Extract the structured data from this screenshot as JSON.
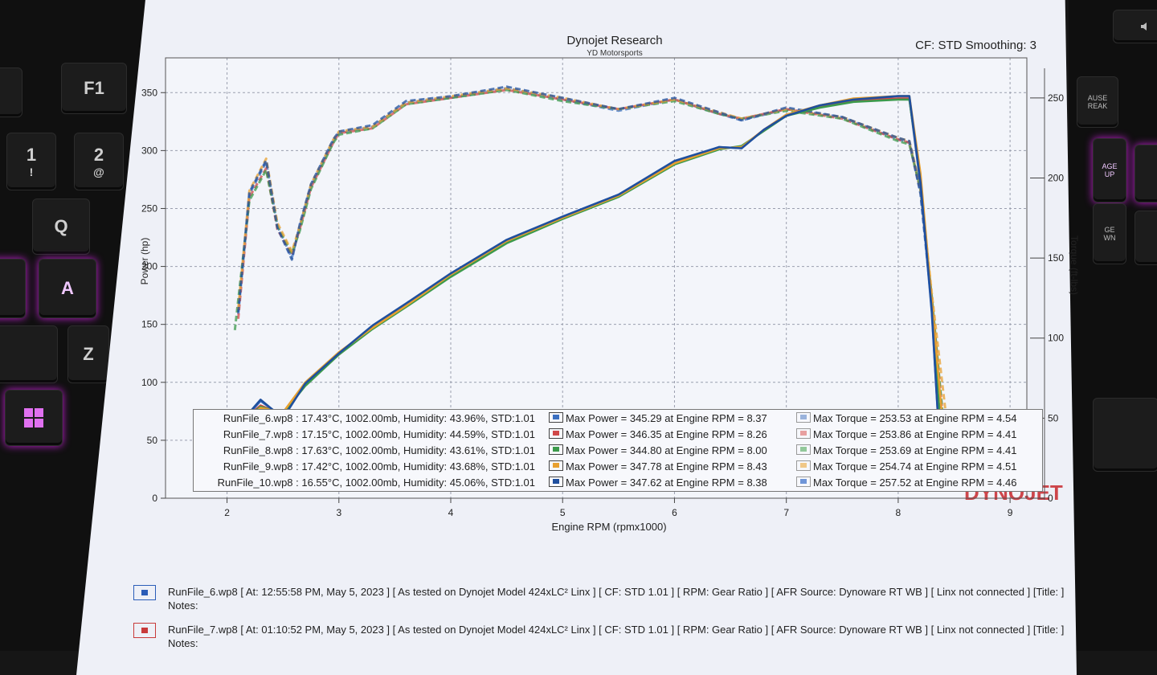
{
  "chart_data": {
    "type": "line",
    "title": "Dynojet Research",
    "subtitle": "YD Motorsports",
    "corner_label": "CF: STD Smoothing: 3",
    "xlabel": "Engine RPM (rpmx1000)",
    "ylabel_left": "Power (hp)",
    "ylabel_right": "Torque (ft-lbs)",
    "xlim": [
      1.45,
      9.15
    ],
    "ylim_left": [
      0,
      380
    ],
    "ylim_right": [
      0,
      275
    ],
    "xticks": [
      "2",
      "3",
      "4",
      "5",
      "6",
      "7",
      "8",
      "9"
    ],
    "yticks_left": [
      "0",
      "50",
      "100",
      "150",
      "200",
      "250",
      "300",
      "350"
    ],
    "yticks_right": [
      "0",
      "50",
      "100",
      "150",
      "200",
      "250"
    ],
    "grid": true,
    "line_style": {
      "power": "solid",
      "torque": "dashed"
    },
    "series": [
      {
        "name": "RunFile_6.wp8",
        "color": "#3a6fc0",
        "power_x": [
          2.1,
          2.2,
          2.3,
          2.5,
          2.7,
          3.0,
          3.3,
          3.6,
          4.0,
          4.5,
          5.0,
          5.5,
          6.0,
          6.4,
          6.6,
          6.8,
          7.0,
          7.3,
          7.6,
          8.0,
          8.1,
          8.2,
          8.3,
          8.38
        ],
        "power_y": [
          56,
          73,
          84,
          70,
          99,
          125,
          148,
          167,
          193,
          222,
          243,
          262,
          290,
          303,
          302,
          318,
          330,
          339,
          344,
          345,
          345,
          270,
          160,
          30
        ],
        "torque_x": [
          2.1,
          2.2,
          2.35,
          2.45,
          2.58,
          2.65,
          2.75,
          2.95,
          3.0,
          3.3,
          3.6,
          4.0,
          4.5,
          5.0,
          5.5,
          6.0,
          6.4,
          6.6,
          7.0,
          7.5,
          8.0,
          8.1,
          8.2,
          8.3,
          8.38
        ],
        "torque_y": [
          115,
          190,
          210,
          170,
          150,
          170,
          195,
          223,
          228,
          232,
          247,
          250,
          256,
          249,
          242,
          249,
          240,
          236,
          243,
          238,
          224,
          222,
          190,
          120,
          50
        ]
      },
      {
        "name": "RunFile_7.wp8",
        "color": "#d04848",
        "power_x": [
          2.1,
          2.2,
          2.3,
          2.5,
          2.7,
          3.0,
          3.3,
          3.6,
          4.0,
          4.5,
          5.0,
          5.5,
          6.0,
          6.4,
          6.6,
          6.8,
          7.0,
          7.3,
          7.6,
          8.0,
          8.1,
          8.2,
          8.3,
          8.4
        ],
        "power_y": [
          55,
          72,
          80,
          72,
          98,
          124,
          147,
          166,
          192,
          221,
          242,
          261,
          289,
          302,
          303,
          318,
          331,
          338,
          343,
          345,
          345,
          275,
          165,
          30
        ],
        "torque_x": [
          2.1,
          2.2,
          2.35,
          2.45,
          2.58,
          2.65,
          2.75,
          2.95,
          3.0,
          3.3,
          3.6,
          4.0,
          4.5,
          5.0,
          5.5,
          6.0,
          6.4,
          6.6,
          7.0,
          7.5,
          8.0,
          8.1,
          8.2,
          8.3,
          8.4
        ],
        "torque_y": [
          112,
          188,
          206,
          168,
          152,
          168,
          194,
          222,
          228,
          231,
          246,
          250,
          255,
          249,
          243,
          249,
          240,
          237,
          243,
          237,
          224,
          222,
          192,
          125,
          50
        ]
      },
      {
        "name": "RunFile_8.wp8",
        "color": "#3c9a4c",
        "power_x": [
          2.1,
          2.2,
          2.3,
          2.5,
          2.7,
          3.0,
          3.3,
          3.6,
          4.0,
          4.5,
          5.0,
          5.5,
          6.0,
          6.4,
          6.6,
          6.8,
          7.0,
          7.3,
          7.6,
          8.0,
          8.1,
          8.2,
          8.3,
          8.4
        ],
        "power_y": [
          54,
          71,
          79,
          73,
          97,
          124,
          146,
          165,
          191,
          220,
          241,
          260,
          288,
          301,
          304,
          317,
          330,
          337,
          342,
          344,
          344,
          276,
          168,
          30
        ],
        "torque_x": [
          2.07,
          2.2,
          2.35,
          2.45,
          2.58,
          2.65,
          2.75,
          2.95,
          3.0,
          3.3,
          3.6,
          4.0,
          4.5,
          5.0,
          5.5,
          6.0,
          6.4,
          6.6,
          7.0,
          7.5,
          8.0,
          8.1,
          8.2,
          8.3,
          8.4
        ],
        "torque_y": [
          105,
          186,
          205,
          170,
          153,
          167,
          193,
          222,
          227,
          231,
          246,
          250,
          255,
          248,
          243,
          248,
          240,
          237,
          242,
          237,
          223,
          221,
          193,
          126,
          50
        ]
      },
      {
        "name": "RunFile_9.wp8",
        "color": "#e8a030",
        "power_x": [
          2.1,
          2.2,
          2.3,
          2.5,
          2.7,
          3.0,
          3.3,
          3.6,
          4.0,
          4.5,
          5.0,
          5.5,
          6.0,
          6.4,
          6.6,
          6.8,
          7.0,
          7.3,
          7.6,
          8.0,
          8.1,
          8.2,
          8.3,
          8.43
        ],
        "power_y": [
          52,
          70,
          78,
          74,
          100,
          126,
          147,
          166,
          193,
          222,
          242,
          261,
          289,
          302,
          303,
          318,
          331,
          339,
          345,
          347,
          347,
          280,
          170,
          30
        ],
        "torque_x": [
          2.1,
          2.2,
          2.35,
          2.45,
          2.58,
          2.65,
          2.75,
          2.95,
          3.0,
          3.3,
          3.6,
          4.0,
          4.5,
          5.0,
          5.5,
          6.0,
          6.4,
          6.6,
          7.0,
          7.5,
          8.0,
          8.1,
          8.2,
          8.3,
          8.43
        ],
        "torque_y": [
          118,
          192,
          212,
          172,
          154,
          170,
          196,
          224,
          229,
          232,
          247,
          251,
          256,
          250,
          243,
          249,
          241,
          237,
          243,
          238,
          225,
          223,
          194,
          128,
          50
        ]
      },
      {
        "name": "RunFile_10.wp8",
        "color": "#1f4f9e",
        "power_x": [
          2.1,
          2.2,
          2.3,
          2.5,
          2.7,
          3.0,
          3.3,
          3.6,
          4.0,
          4.5,
          5.0,
          5.5,
          6.0,
          6.4,
          6.6,
          6.8,
          7.0,
          7.3,
          7.6,
          8.0,
          8.1,
          8.2,
          8.3,
          8.38
        ],
        "power_y": [
          57,
          74,
          85,
          69,
          99,
          125,
          149,
          168,
          194,
          223,
          243,
          262,
          291,
          303,
          302,
          318,
          330,
          339,
          344,
          347,
          347,
          272,
          162,
          30
        ],
        "torque_x": [
          2.1,
          2.2,
          2.35,
          2.45,
          2.58,
          2.65,
          2.75,
          2.95,
          3.0,
          3.3,
          3.6,
          4.0,
          4.5,
          5.0,
          5.5,
          6.0,
          6.4,
          6.6,
          7.0,
          7.5,
          8.0,
          8.1,
          8.2,
          8.3,
          8.38
        ],
        "torque_y": [
          116,
          191,
          211,
          169,
          149,
          171,
          196,
          224,
          229,
          233,
          248,
          251,
          257,
          250,
          243,
          250,
          241,
          236,
          244,
          238,
          225,
          223,
          191,
          122,
          50
        ]
      }
    ]
  },
  "legend": [
    {
      "run": "RunFile_6.wp8 : 17.43°C, 1002.00mb, Humidity: 43.96%, STD:1.01",
      "power": "Max Power = 345.29 at Engine RPM = 8.37",
      "torque": "Max Torque = 253.53 at Engine RPM = 4.54",
      "color": "#3a6fc0",
      "torque_color": "#9ab3dc"
    },
    {
      "run": "RunFile_7.wp8 : 17.15°C, 1002.00mb, Humidity: 44.59%, STD:1.01",
      "power": "Max Power = 346.35 at Engine RPM = 8.26",
      "torque": "Max Torque = 253.86 at Engine RPM = 4.41",
      "color": "#d04848",
      "torque_color": "#e8a0a0"
    },
    {
      "run": "RunFile_8.wp8 : 17.63°C, 1002.00mb, Humidity: 43.61%, STD:1.01",
      "power": "Max Power = 344.80 at Engine RPM = 8.00",
      "torque": "Max Torque = 253.69 at Engine RPM = 4.41",
      "color": "#3c9a4c",
      "torque_color": "#92c89a"
    },
    {
      "run": "RunFile_9.wp8 : 17.42°C, 1002.00mb, Humidity: 43.68%, STD:1.01",
      "power": "Max Power = 347.78 at Engine RPM = 8.43",
      "torque": "Max Torque = 254.74 at Engine RPM = 4.51",
      "color": "#e8a030",
      "torque_color": "#f0c888"
    },
    {
      "run": "RunFile_10.wp8 : 16.55°C, 1002.00mb, Humidity: 45.06%, STD:1.01",
      "power": "Max Power = 347.62 at Engine RPM = 8.38",
      "torque": "Max Torque = 257.52 at Engine RPM = 4.46",
      "color": "#1f4f9e",
      "torque_color": "#6f95d8"
    }
  ],
  "watermark": "DYNOJET",
  "notes": [
    {
      "text": "RunFile_6.wp8 [ At: 12:55:58 PM, May 5, 2023 ] [ As tested on Dynojet Model 424xLC² Linx ] [ CF: STD 1.01 ] [ RPM: Gear Ratio ] [ AFR Source: Dynoware RT WB ] [ Linx not connected ] [Title: ]",
      "label": "Notes:",
      "color": "#2b5db8"
    },
    {
      "text": "RunFile_7.wp8 [ At: 01:10:52 PM, May 5, 2023 ] [ As tested on Dynojet Model 424xLC² Linx ] [ CF: STD 1.01 ] [ RPM: Gear Ratio ] [ AFR Source: Dynoware RT WB ] [ Linx not connected ] [Title: ]",
      "label": "Notes:",
      "color": "#c83a3a"
    }
  ],
  "keyboard_left": [
    "F1",
    "1",
    "!",
    "2",
    "@",
    "Q",
    "A",
    "Z"
  ],
  "keyboard_right": [
    "AUSE",
    "REAK",
    "AGE",
    "UP",
    "GE",
    "WN"
  ]
}
